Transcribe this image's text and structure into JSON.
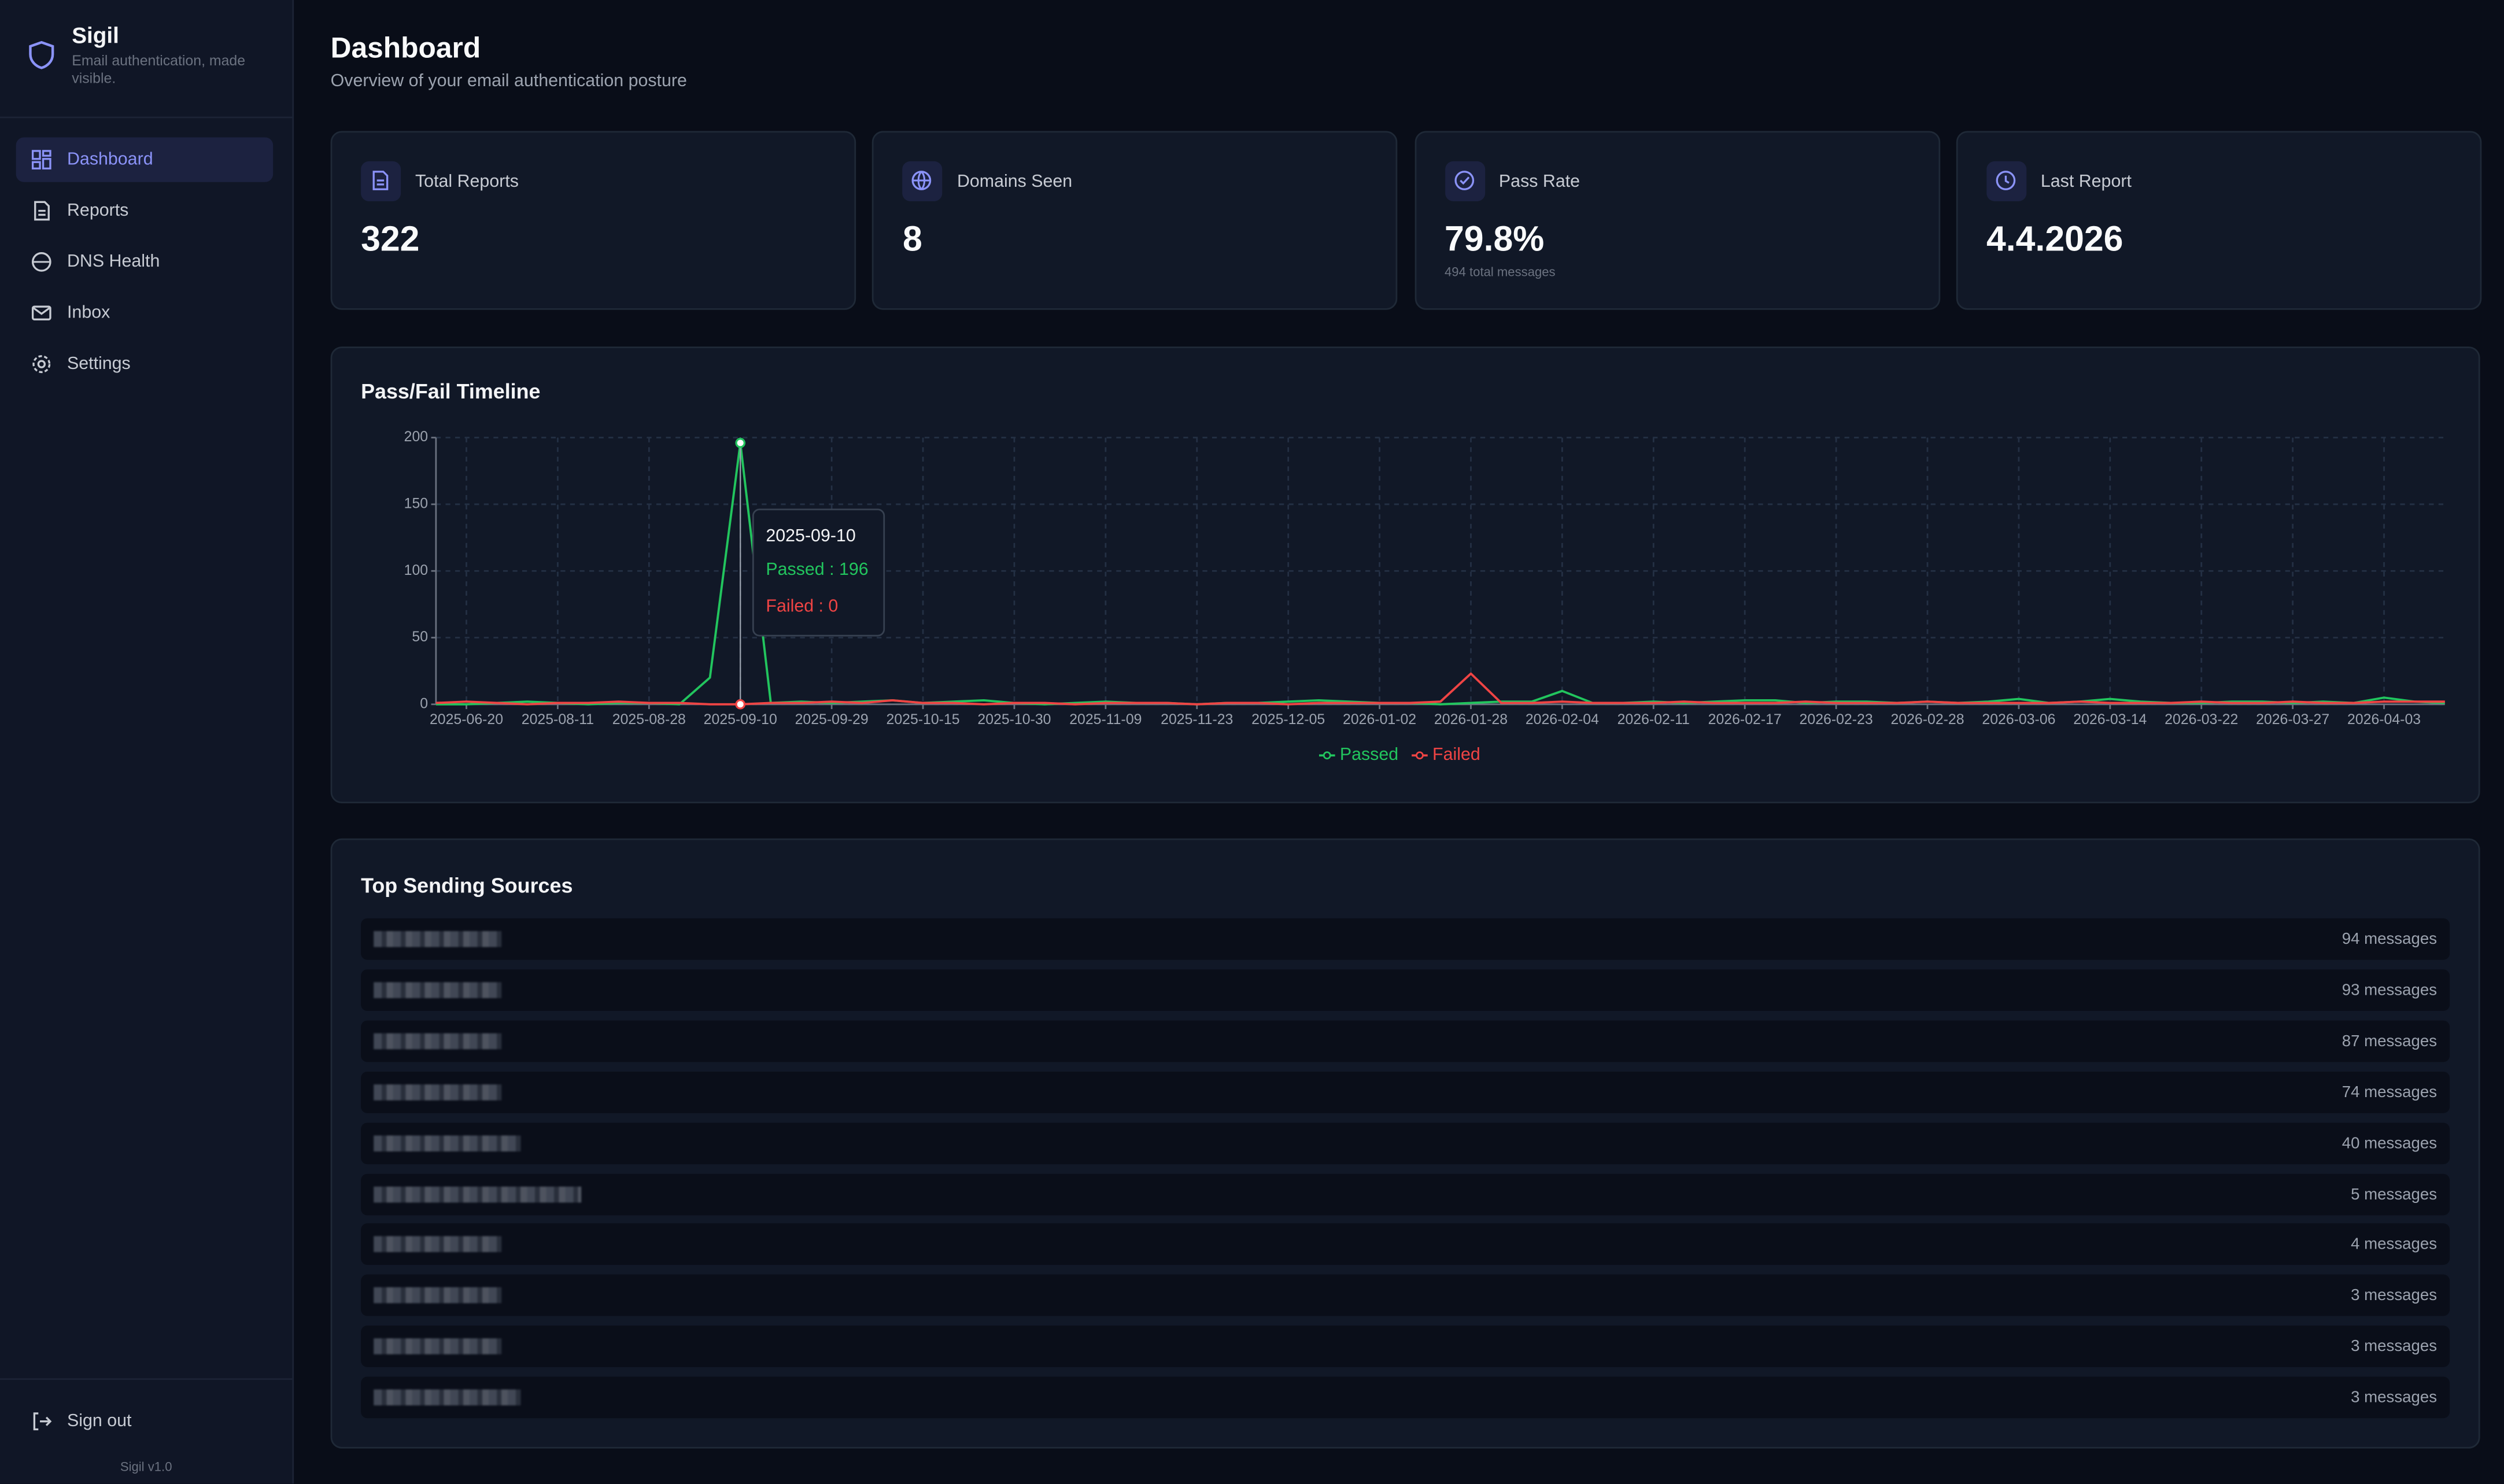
{
  "sidebar": {
    "brand": "Sigil",
    "tagline": "Email authentication, made visible.",
    "nav": [
      "Dashboard",
      "Reports",
      "DNS Health",
      "Inbox",
      "Settings"
    ],
    "sign_out": "Sign out",
    "version": "Sigil v1.0"
  },
  "header": {
    "title": "Dashboard",
    "subtitle": "Overview of your email authentication posture"
  },
  "stats": [
    {
      "label": "Total Reports",
      "value": "322"
    },
    {
      "label": "Domains Seen",
      "value": "8"
    },
    {
      "label": "Pass Rate",
      "value": "79.8%",
      "note": "494 total messages"
    },
    {
      "label": "Last Report",
      "value": "4.4.2026"
    }
  ],
  "chart_data": {
    "type": "line",
    "title": "Pass/Fail Timeline",
    "categories": [
      null,
      "2025-06-20",
      null,
      null,
      "2025-08-11",
      null,
      null,
      "2025-08-28",
      null,
      null,
      "2025-09-10",
      null,
      null,
      "2025-09-29",
      null,
      null,
      "2025-10-15",
      null,
      null,
      "2025-10-30",
      null,
      null,
      "2025-11-09",
      null,
      null,
      "2025-11-23",
      null,
      null,
      "2025-12-05",
      null,
      null,
      "2026-01-02",
      null,
      null,
      "2026-01-28",
      null,
      null,
      "2026-02-04",
      null,
      null,
      "2026-02-11",
      null,
      null,
      "2026-02-17",
      null,
      null,
      "2026-02-23",
      null,
      null,
      "2026-02-28",
      null,
      null,
      "2026-03-06",
      null,
      null,
      "2026-03-14",
      null,
      null,
      "2026-03-22",
      null,
      null,
      "2026-03-27",
      null,
      null,
      "2026-04-03",
      null,
      null
    ],
    "series": [
      {
        "name": "Passed",
        "color": "#22c55e",
        "values": [
          0,
          0,
          1,
          2,
          1,
          0,
          1,
          1,
          0,
          20,
          196,
          1,
          2,
          1,
          2,
          3,
          1,
          2,
          3,
          1,
          0,
          1,
          2,
          1,
          1,
          0,
          1,
          1,
          2,
          3,
          2,
          1,
          1,
          0,
          1,
          2,
          2,
          10,
          1,
          1,
          2,
          1,
          2,
          3,
          3,
          1,
          2,
          2,
          1,
          2,
          1,
          2,
          4,
          1,
          2,
          4,
          2,
          1,
          1,
          2,
          2,
          1,
          2,
          1,
          5,
          2,
          1
        ]
      },
      {
        "name": "Failed",
        "color": "#ef4444",
        "values": [
          1,
          2,
          1,
          0,
          1,
          1,
          2,
          1,
          1,
          0,
          0,
          1,
          1,
          2,
          1,
          3,
          1,
          1,
          0,
          1,
          1,
          0,
          1,
          1,
          1,
          0,
          1,
          1,
          0,
          1,
          1,
          1,
          1,
          2,
          23,
          1,
          1,
          2,
          1,
          1,
          1,
          2,
          1,
          1,
          1,
          2,
          1,
          1,
          1,
          2,
          1,
          1,
          1,
          1,
          2,
          1,
          1,
          1,
          2,
          1,
          1,
          2,
          1,
          1,
          2,
          2,
          2
        ]
      }
    ],
    "ylim": [
      0,
      200
    ],
    "yticks": [
      0,
      50,
      100,
      150,
      200
    ],
    "grid": true
  },
  "sources": {
    "title": "Top Sending Sources",
    "rows": [
      "94 messages",
      "93 messages",
      "87 messages",
      "74 messages",
      "40 messages",
      "5 messages",
      "4 messages",
      "3 messages",
      "3 messages",
      "3 messages"
    ]
  }
}
